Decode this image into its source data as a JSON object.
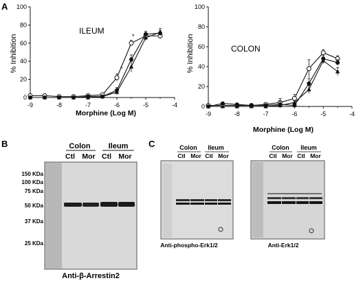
{
  "panel_letters": {
    "a": "A",
    "b": "B",
    "c": "C"
  },
  "chart_data": [
    {
      "type": "line",
      "inset_label": "ILEUM",
      "xlabel": "Morphine (Log M)",
      "ylabel": "% Inhibition",
      "xlim": [
        -9,
        -4
      ],
      "ylim": [
        0,
        100
      ],
      "x_ticks": [
        "-9",
        "-8",
        "-7",
        "-6",
        "-5",
        "-4"
      ],
      "y_ticks": [
        "0",
        "20",
        "40",
        "60",
        "80",
        "100"
      ],
      "annotations": [
        "*",
        "*"
      ],
      "x": [
        -9,
        -8.5,
        -8,
        -7.5,
        -7,
        -6.5,
        -6,
        -5.5,
        -5,
        -4.5
      ],
      "series": [
        {
          "marker": "open-circle",
          "values": [
            2,
            2,
            1,
            1,
            2,
            3,
            22,
            60,
            68,
            68
          ]
        },
        {
          "marker": "filled-circle",
          "values": [
            0,
            0,
            0,
            0,
            1,
            1,
            8,
            42,
            70,
            71
          ]
        },
        {
          "marker": "triangle",
          "values": [
            0,
            0,
            0,
            0,
            0,
            1,
            6,
            34,
            66,
            72
          ]
        }
      ]
    },
    {
      "type": "line",
      "inset_label": "COLON",
      "xlabel": "Morphine (Log M)",
      "ylabel": "% Inhibition",
      "xlim": [
        -9,
        -4
      ],
      "ylim": [
        0,
        100
      ],
      "x_ticks": [
        "-9",
        "-8",
        "-7",
        "-6",
        "-5",
        "-4"
      ],
      "y_ticks": [
        "0",
        "20",
        "40",
        "60",
        "80",
        "100"
      ],
      "x": [
        -9,
        -8.5,
        -8,
        -7.5,
        -7,
        -6.5,
        -6,
        -5.5,
        -5,
        -4.5
      ],
      "series": [
        {
          "marker": "open-circle",
          "values": [
            1,
            1,
            1,
            1,
            2,
            4,
            8,
            38,
            54,
            48
          ]
        },
        {
          "marker": "filled-circle",
          "values": [
            0,
            3,
            2,
            1,
            1,
            2,
            1,
            23,
            48,
            44
          ]
        },
        {
          "marker": "triangle",
          "values": [
            0,
            0,
            0,
            0,
            0,
            1,
            4,
            17,
            46,
            35
          ]
        }
      ]
    }
  ],
  "blot_b": {
    "ladder_labels": [
      "150 KDa",
      "100 KDa",
      "75 KDa",
      "50 KDa",
      "37 KDa",
      "25 KDa"
    ],
    "group_labels": [
      "Colon",
      "Ileum"
    ],
    "lane_labels": [
      "Ctl",
      "Mor",
      "Ctl",
      "Mor"
    ],
    "caption": "Anti-β-Arrestin2"
  },
  "blot_c1": {
    "group_labels": [
      "Colon",
      "Ileum"
    ],
    "lane_labels": [
      "Ctl",
      "Mor",
      "Ctl",
      "Mor"
    ],
    "caption": "Anti-phospho-Erk1/2"
  },
  "blot_c2": {
    "group_labels": [
      "Colon",
      "Ileum"
    ],
    "lane_labels": [
      "Ctl",
      "Mor",
      "Ctl",
      "Mor"
    ],
    "caption": "Anti-Erk1/2"
  },
  "colors": {
    "ink": "#111111",
    "blot_bg": "#d8d8d8",
    "band": "#202020"
  }
}
